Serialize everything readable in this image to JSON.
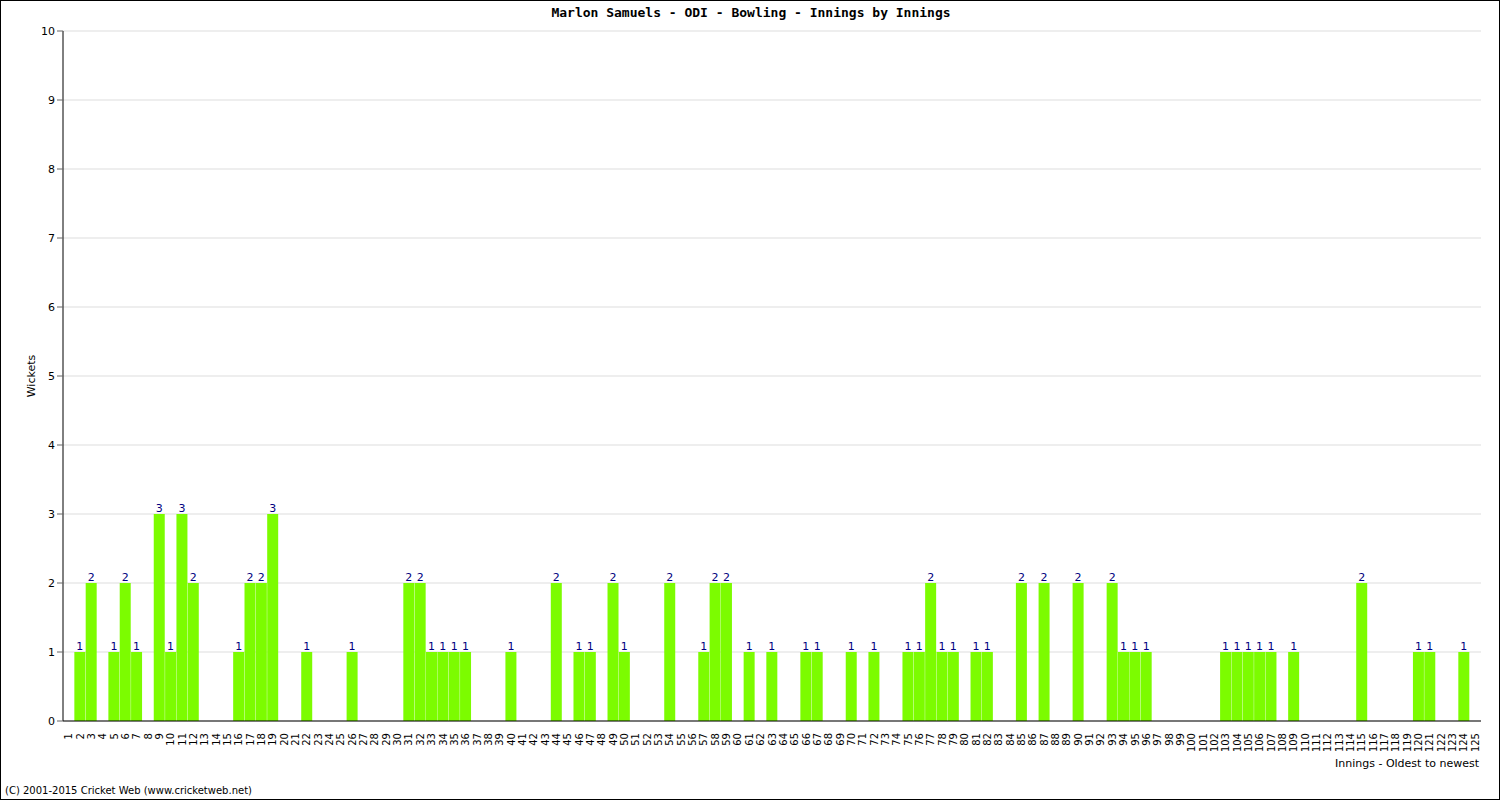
{
  "chart_data": {
    "type": "bar",
    "title": "Marlon Samuels - ODI - Bowling - Innings by Innings",
    "x_label": "Innings - Oldest to newest",
    "y_label": "Wickets",
    "annotations": [
      "(C) 2001-2015 Cricket Web (www.cricketweb.net)"
    ],
    "categories": [
      "1",
      "2",
      "3",
      "4",
      "5",
      "6",
      "7",
      "8",
      "9",
      "10",
      "11",
      "12",
      "13",
      "14",
      "15",
      "16",
      "17",
      "18",
      "19",
      "20",
      "21",
      "22",
      "23",
      "24",
      "25",
      "26",
      "27",
      "28",
      "29",
      "30",
      "31",
      "32",
      "33",
      "34",
      "35",
      "36",
      "37",
      "38",
      "39",
      "40",
      "41",
      "42",
      "43",
      "44",
      "45",
      "46",
      "47",
      "48",
      "49",
      "50",
      "51",
      "52",
      "53",
      "54",
      "55",
      "56",
      "57",
      "58",
      "59",
      "60",
      "61",
      "62",
      "63",
      "64",
      "65",
      "66",
      "67",
      "68",
      "69",
      "70",
      "71",
      "72",
      "73",
      "74",
      "75",
      "76",
      "77",
      "78",
      "79",
      "80",
      "81",
      "82",
      "83",
      "84",
      "85",
      "86",
      "87",
      "88",
      "89",
      "90",
      "91",
      "92",
      "93",
      "94",
      "95",
      "96",
      "97",
      "98",
      "99",
      "100",
      "101",
      "102",
      "103",
      "104",
      "105",
      "106",
      "107",
      "108",
      "109",
      "110",
      "111",
      "112",
      "113",
      "114",
      "115",
      "116",
      "117",
      "118",
      "119",
      "120",
      "121",
      "122",
      "123",
      "124",
      "125"
    ],
    "values": [
      0,
      1,
      2,
      0,
      1,
      2,
      1,
      0,
      3,
      1,
      3,
      2,
      0,
      0,
      0,
      1,
      2,
      2,
      3,
      0,
      0,
      1,
      0,
      0,
      0,
      1,
      0,
      0,
      0,
      0,
      2,
      2,
      1,
      1,
      1,
      1,
      0,
      0,
      0,
      1,
      0,
      0,
      0,
      2,
      0,
      1,
      1,
      0,
      2,
      1,
      0,
      0,
      0,
      2,
      0,
      0,
      1,
      2,
      2,
      0,
      1,
      0,
      1,
      0,
      0,
      1,
      1,
      0,
      0,
      1,
      0,
      1,
      0,
      0,
      1,
      1,
      2,
      1,
      1,
      0,
      1,
      1,
      0,
      0,
      2,
      0,
      2,
      0,
      0,
      2,
      0,
      0,
      2,
      1,
      1,
      1,
      0,
      0,
      0,
      0,
      0,
      0,
      1,
      1,
      1,
      1,
      1,
      0,
      1,
      0,
      0,
      0,
      0,
      0,
      2,
      0,
      0,
      0,
      0,
      1,
      1,
      0,
      0,
      1,
      0
    ],
    "color": "#7cfc00",
    "ylim": [
      0,
      10
    ],
    "yticks": [
      0,
      1,
      2,
      3,
      4,
      5,
      6,
      7,
      8,
      9,
      10
    ],
    "grid": true,
    "data_labels": true
  }
}
